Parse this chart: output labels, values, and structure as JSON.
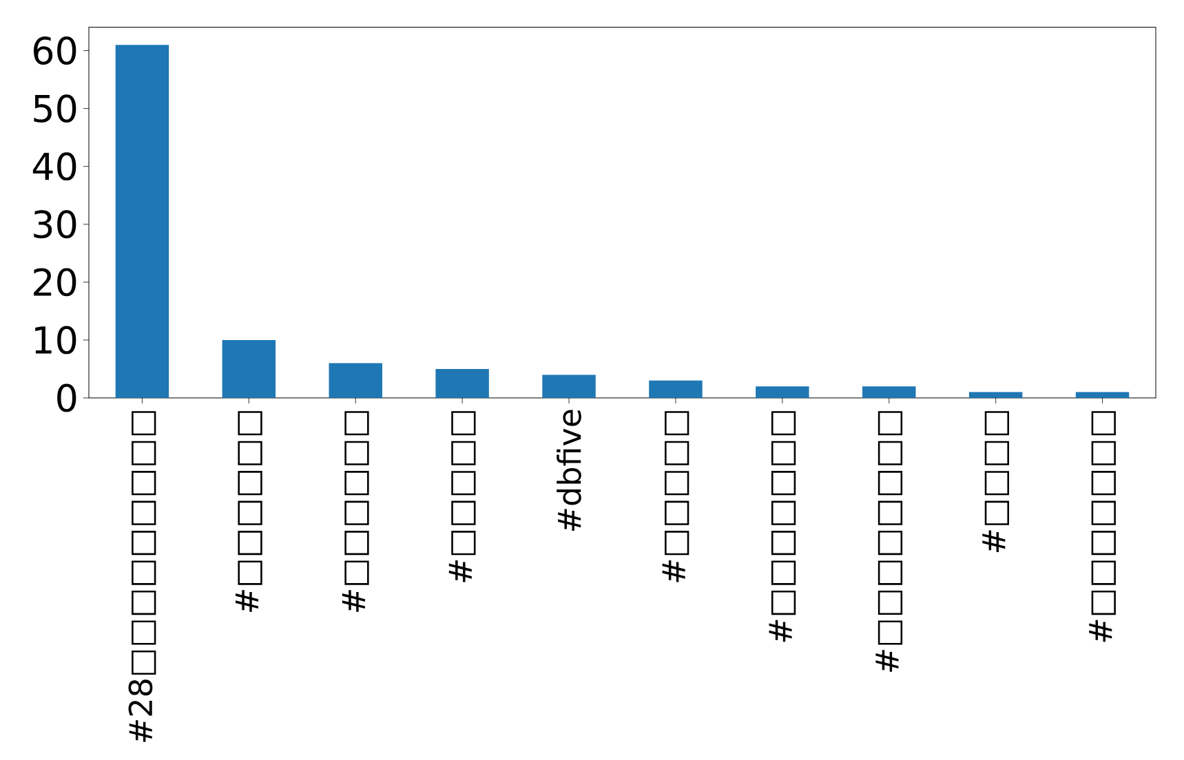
{
  "chart_data": {
    "type": "bar",
    "categories": [
      "#28□□□□□□□□□",
      "#□□□□□□",
      "#□□□□□□",
      "#□□□□□",
      "#dbfive",
      "#□□□□□",
      "#□□□□□□□",
      "#□□□□□□□□",
      "#□□□□",
      "#□□□□□□□"
    ],
    "values": [
      61,
      10,
      6,
      5,
      4,
      3,
      2,
      2,
      1,
      1
    ],
    "color": "#1f77b4",
    "ylim": [
      0,
      64.05
    ],
    "yticks": [
      0,
      10,
      20,
      30,
      40,
      50,
      60
    ]
  }
}
